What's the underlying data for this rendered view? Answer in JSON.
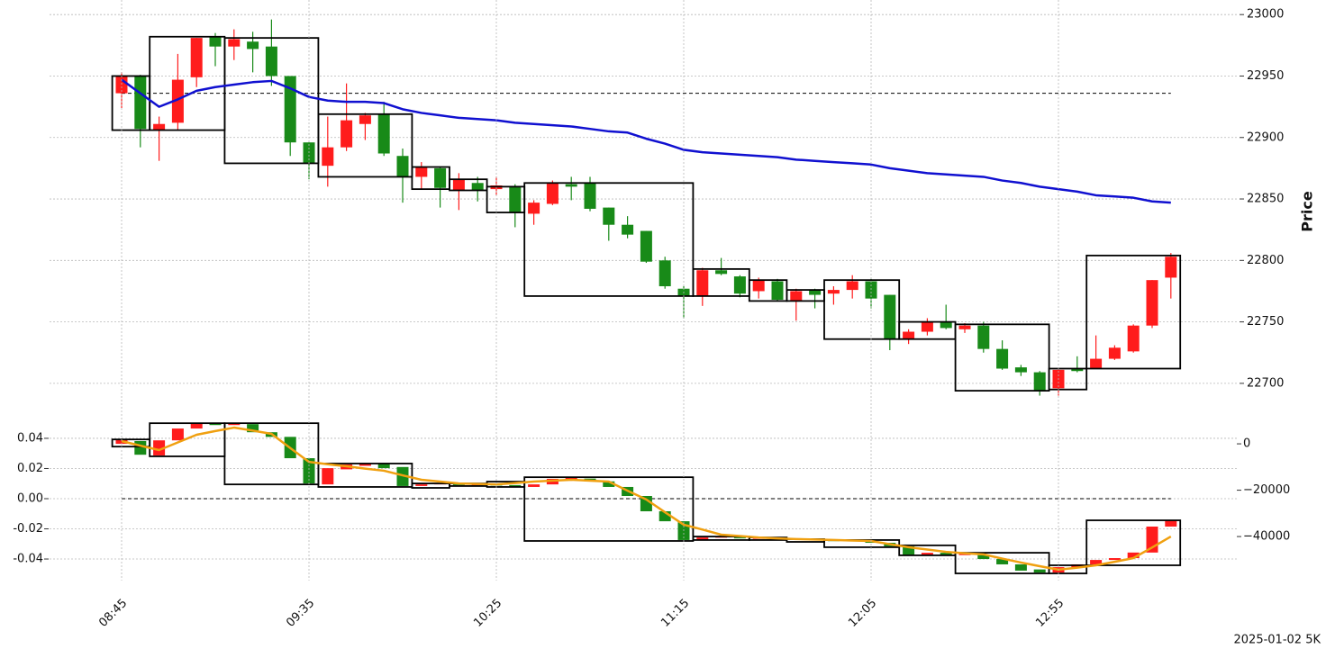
{
  "chart_data": [
    {
      "type": "candlestick",
      "ylabel": "Price",
      "open": [
        22936,
        22950,
        22906,
        22912,
        22949,
        22982,
        22974,
        22978,
        22974,
        22950,
        22896,
        22877,
        22892,
        22911,
        22919,
        22885,
        22868,
        22875,
        22857,
        22863,
        22858,
        22860,
        22838,
        22846,
        22862,
        22863,
        22843,
        22829,
        22824,
        22800,
        22777,
        22771,
        22792,
        22787,
        22775,
        22783,
        22767,
        22776,
        22773,
        22776,
        22783,
        22772,
        22736,
        22742,
        22750,
        22744,
        22747,
        22728,
        22713,
        22709,
        22696,
        22712,
        22712,
        22720,
        22726,
        22747,
        22786
      ],
      "high": [
        22953,
        22951,
        22917,
        22968,
        22981,
        22985,
        22988,
        22986,
        22996,
        22950,
        22896,
        22917,
        22944,
        22920,
        22929,
        22891,
        22880,
        22876,
        22871,
        22868,
        22868,
        22862,
        22849,
        22865,
        22868,
        22868,
        22843,
        22836,
        22824,
        22803,
        22779,
        22794,
        22802,
        22788,
        22786,
        22785,
        22777,
        22777,
        22779,
        22788,
        22785,
        22772,
        22744,
        22753,
        22764,
        22749,
        22750,
        22735,
        22715,
        22710,
        22711,
        22722,
        22739,
        22731,
        22748,
        22784,
        22806
      ],
      "low": [
        22924,
        22892,
        22881,
        22906,
        22941,
        22958,
        22963,
        22953,
        22942,
        22885,
        22866,
        22860,
        22889,
        22898,
        22885,
        22847,
        22858,
        22843,
        22841,
        22848,
        22853,
        22827,
        22829,
        22845,
        22849,
        22840,
        22816,
        22818,
        22798,
        22777,
        22753,
        22763,
        22788,
        22770,
        22769,
        22767,
        22751,
        22761,
        22764,
        22769,
        22761,
        22727,
        22732,
        22739,
        22744,
        22741,
        22725,
        22711,
        22706,
        22690,
        22690,
        22709,
        22712,
        22719,
        22725,
        22745,
        22769
      ],
      "close": [
        22950,
        22907,
        22911,
        22947,
        22981,
        22974,
        22980,
        22972,
        22950,
        22896,
        22879,
        22892,
        22914,
        22918,
        22887,
        22868,
        22876,
        22859,
        22866,
        22857,
        22861,
        22839,
        22847,
        22863,
        22860,
        22842,
        22829,
        22821,
        22799,
        22779,
        22771,
        22792,
        22789,
        22773,
        22784,
        22768,
        22775,
        22772,
        22776,
        22783,
        22769,
        22736,
        22742,
        22750,
        22745,
        22747,
        22728,
        22712,
        22709,
        22694,
        22711,
        22710,
        22720,
        22729,
        22747,
        22784,
        22803
      ],
      "up_color": "#ff1c1c",
      "down_color": "#188a18",
      "line": {
        "color": "#1010d0",
        "values": [
          22947,
          22936,
          22925,
          22931,
          22938,
          22941,
          22943,
          22945,
          22946,
          22940,
          22933,
          22930,
          22929,
          22929,
          22928,
          22923,
          22920,
          22918,
          22916,
          22915,
          22914,
          22912,
          22911,
          22910,
          22909,
          22907,
          22905,
          22904,
          22899,
          22895,
          22890,
          22888,
          22887,
          22886,
          22885,
          22884,
          22882,
          22881,
          22880,
          22879,
          22878,
          22875,
          22873,
          22871,
          22870,
          22869,
          22868,
          22865,
          22863,
          22860,
          22858,
          22856,
          22853,
          22852,
          22851,
          22848,
          22847
        ]
      },
      "hline": 22936,
      "boxes": [
        {
          "start": 0,
          "end": 1,
          "low": 22906,
          "high": 22950
        },
        {
          "start": 2,
          "end": 5,
          "low": 22906,
          "high": 22982
        },
        {
          "start": 6,
          "end": 10,
          "low": 22879,
          "high": 22981
        },
        {
          "start": 11,
          "end": 15,
          "low": 22868,
          "high": 22919
        },
        {
          "start": 16,
          "end": 17,
          "low": 22858,
          "high": 22876
        },
        {
          "start": 18,
          "end": 19,
          "low": 22857,
          "high": 22866
        },
        {
          "start": 20,
          "end": 21,
          "low": 22839,
          "high": 22860
        },
        {
          "start": 22,
          "end": 30,
          "low": 22771,
          "high": 22863
        },
        {
          "start": 31,
          "end": 33,
          "low": 22771,
          "high": 22793
        },
        {
          "start": 34,
          "end": 35,
          "low": 22767,
          "high": 22784
        },
        {
          "start": 36,
          "end": 37,
          "low": 22767,
          "high": 22776
        },
        {
          "start": 38,
          "end": 41,
          "low": 22736,
          "high": 22784
        },
        {
          "start": 42,
          "end": 44,
          "low": 22736,
          "high": 22750
        },
        {
          "start": 45,
          "end": 49,
          "low": 22694,
          "high": 22748
        },
        {
          "start": 50,
          "end": 51,
          "low": 22695,
          "high": 22712
        },
        {
          "start": 52,
          "end": 56,
          "low": 22712,
          "high": 22804
        }
      ],
      "ylim": [
        22686,
        23006
      ],
      "yticks": [
        22700,
        22750,
        22800,
        22850,
        22900,
        22950,
        23000
      ],
      "grid": true
    },
    {
      "type": "candlestick",
      "categories": [
        "08:45",
        null,
        null,
        null,
        null,
        null,
        null,
        null,
        null,
        null,
        "09:35",
        null,
        null,
        null,
        null,
        null,
        null,
        null,
        null,
        null,
        "10:25",
        null,
        null,
        null,
        null,
        null,
        null,
        null,
        null,
        null,
        "11:15",
        null,
        null,
        null,
        null,
        null,
        null,
        null,
        null,
        null,
        "12:05",
        null,
        null,
        null,
        null,
        null,
        null,
        null,
        null,
        null,
        "12:55",
        null,
        null,
        null,
        null,
        null,
        null
      ],
      "axis": "y2",
      "open": [
        0,
        1200,
        -5000,
        1500,
        6600,
        8900,
        8100,
        8500,
        5000,
        3000,
        -6200,
        -17500,
        -11000,
        -9500,
        -8500,
        -10000,
        -18200,
        -17500,
        -17200,
        -17800,
        -17500,
        -17800,
        -18600,
        -17500,
        -15500,
        -15000,
        -16200,
        -18600,
        -22500,
        -29100,
        -33400,
        -41500,
        -40500,
        -40400,
        -40800,
        -40700,
        -41000,
        -41300,
        -41600,
        -41800,
        -41500,
        -42700,
        -44200,
        -48100,
        -47000,
        -48000,
        -48000,
        -49700,
        -52000,
        -54200,
        -55500,
        -53200,
        -52000,
        -50100,
        -49300,
        -46900,
        -35700
      ],
      "close": [
        1900,
        -4700,
        1500,
        6600,
        8900,
        8100,
        8900,
        5000,
        3000,
        -6200,
        -17100,
        -10500,
        -8900,
        -8500,
        -10500,
        -18200,
        -17500,
        -17000,
        -17800,
        -17500,
        -18000,
        -18600,
        -17500,
        -15100,
        -14700,
        -16200,
        -18600,
        -22500,
        -29100,
        -33400,
        -41500,
        -40400,
        -40000,
        -40800,
        -40600,
        -41000,
        -41300,
        -41600,
        -41800,
        -41500,
        -42700,
        -44200,
        -48100,
        -47000,
        -48000,
        -47500,
        -49700,
        -52000,
        -54700,
        -55500,
        -53200,
        -52000,
        -50100,
        -49300,
        -46900,
        -35700,
        -33000
      ],
      "up_color": "#ff1c1c",
      "down_color": "#188a18",
      "line": {
        "color": "#f0a010",
        "values": [
          1200,
          -800,
          -2700,
          600,
          3900,
          5500,
          7000,
          5700,
          4300,
          -1800,
          -7800,
          -8800,
          -9700,
          -10700,
          -11600,
          -13600,
          -15500,
          -16300,
          -17100,
          -17300,
          -17500,
          -16900,
          -16300,
          -15900,
          -15500,
          -15900,
          -16300,
          -20200,
          -24000,
          -29500,
          -34900,
          -37000,
          -39200,
          -39800,
          -40400,
          -40800,
          -41100,
          -41300,
          -41500,
          -41700,
          -41900,
          -43300,
          -44600,
          -45600,
          -46600,
          -47200,
          -47700,
          -49500,
          -51200,
          -52800,
          -54300,
          -53400,
          -52400,
          -50900,
          -49300,
          -44700,
          -40000
        ]
      },
      "hline": 0,
      "boxes": [
        {
          "start": 0,
          "end": 1,
          "low": -1200,
          "high": 1900
        },
        {
          "start": 2,
          "end": 5,
          "low": -5400,
          "high": 8900
        },
        {
          "start": 6,
          "end": 10,
          "low": -17500,
          "high": 8900
        },
        {
          "start": 11,
          "end": 15,
          "low": -18600,
          "high": -8500
        },
        {
          "start": 16,
          "end": 17,
          "low": -19000,
          "high": -17100
        },
        {
          "start": 18,
          "end": 19,
          "low": -18200,
          "high": -17100
        },
        {
          "start": 20,
          "end": 21,
          "low": -18600,
          "high": -16300
        },
        {
          "start": 22,
          "end": 30,
          "low": -41900,
          "high": -14400
        },
        {
          "start": 31,
          "end": 33,
          "low": -41500,
          "high": -40000
        },
        {
          "start": 34,
          "end": 35,
          "low": -41500,
          "high": -40400
        },
        {
          "start": 36,
          "end": 37,
          "low": -42300,
          "high": -41100
        },
        {
          "start": 38,
          "end": 41,
          "low": -44600,
          "high": -41500
        },
        {
          "start": 42,
          "end": 44,
          "low": -48100,
          "high": -43800
        },
        {
          "start": 45,
          "end": 49,
          "low": -55900,
          "high": -47000
        },
        {
          "start": 50,
          "end": 51,
          "low": -55900,
          "high": -52400
        },
        {
          "start": 52,
          "end": 56,
          "low": -52400,
          "high": -33000
        }
      ],
      "ylim": [
        -0.0543,
        0.0531
      ],
      "yticks": [
        -0.04,
        -0.02,
        {
          "value": 0,
          "label": "0.00"
        },
        0.02,
        0.04
      ],
      "y2lim": [
        -59000,
        10900
      ],
      "y2ticks": [
        {
          "value": -40000,
          "label": "−40000"
        },
        {
          "value": -20000,
          "label": "−20000"
        },
        0
      ],
      "grid": true
    }
  ],
  "footer": "2025-01-02 5K"
}
